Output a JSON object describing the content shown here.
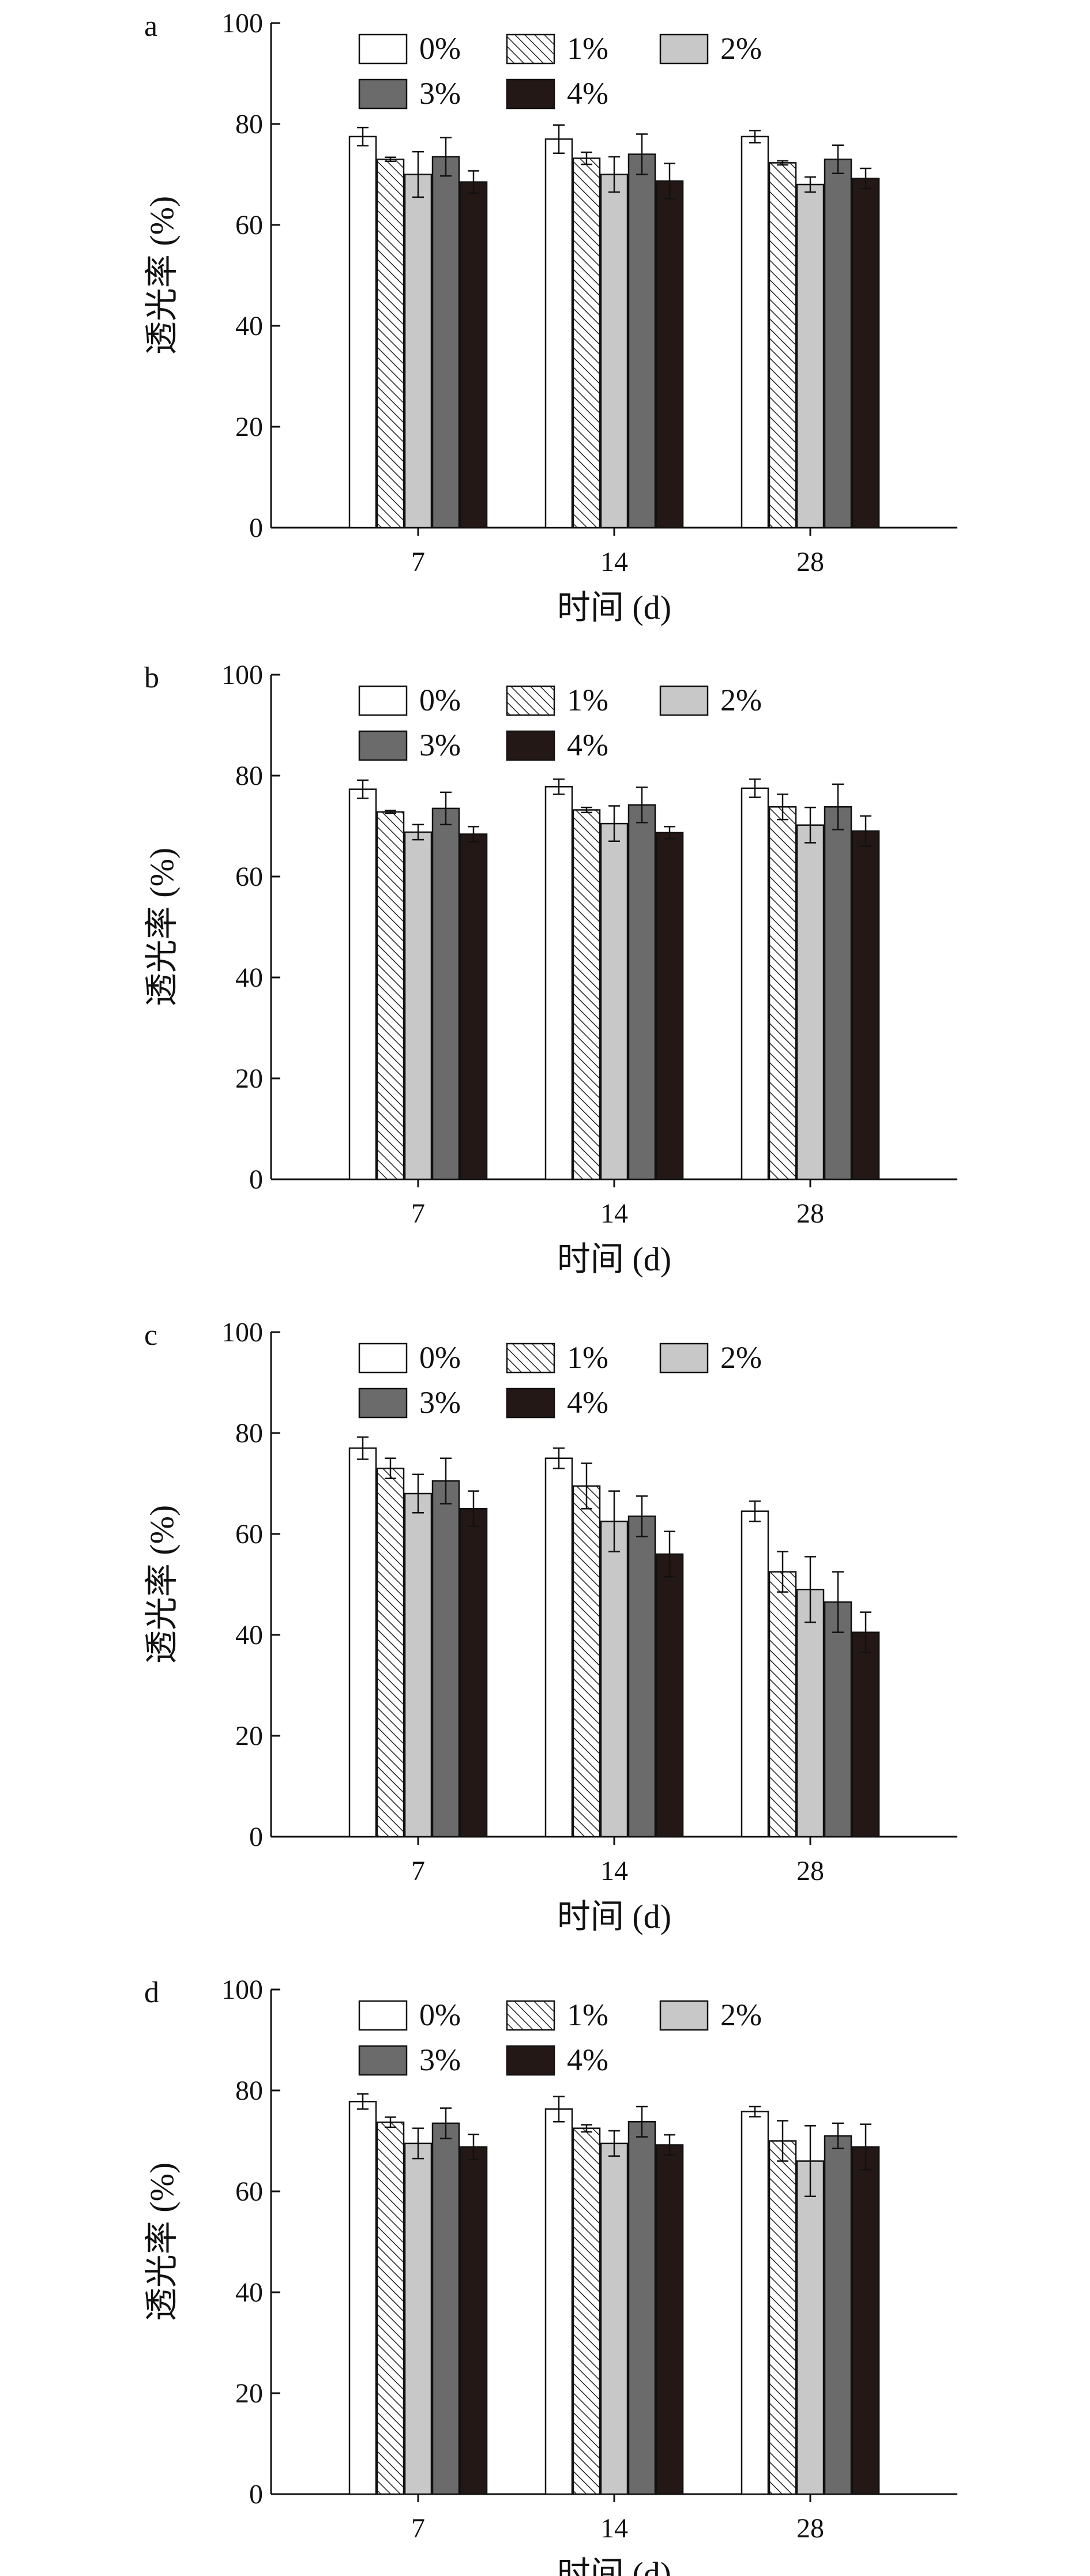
{
  "figure": {
    "colors": {
      "0%": "#ffffff",
      "1%": "hatch",
      "2%": "#c8c8c8",
      "3%": "#6b6b6b",
      "4%": "#231815"
    }
  },
  "chart_data": [
    {
      "type": "bar",
      "panel": "a",
      "categories": [
        "7",
        "14",
        "28"
      ],
      "xlabel": "时间 (d)",
      "ylabel": "透光率 (%)",
      "ylim": [
        0,
        100
      ],
      "yticks": [
        0,
        20,
        40,
        60,
        80,
        100
      ],
      "legend": [
        "0%",
        "1%",
        "2%",
        "3%",
        "4%"
      ],
      "legend_position": "top-left",
      "grid": false,
      "series": [
        {
          "name": "0%",
          "values": [
            77.5,
            77.0,
            77.5
          ],
          "errors": [
            1.8,
            2.8,
            1.2
          ]
        },
        {
          "name": "1%",
          "values": [
            73.0,
            73.2,
            72.3
          ],
          "errors": [
            0.4,
            1.2,
            0.4
          ]
        },
        {
          "name": "2%",
          "values": [
            70.0,
            70.0,
            68.0
          ],
          "errors": [
            4.5,
            3.5,
            1.5
          ]
        },
        {
          "name": "3%",
          "values": [
            73.5,
            74.0,
            73.0
          ],
          "errors": [
            3.8,
            4.0,
            2.8
          ]
        },
        {
          "name": "4%",
          "values": [
            68.5,
            68.7,
            69.2
          ],
          "errors": [
            2.2,
            3.5,
            2.0
          ]
        }
      ]
    },
    {
      "type": "bar",
      "panel": "b",
      "categories": [
        "7",
        "14",
        "28"
      ],
      "xlabel": "时间 (d)",
      "ylabel": "透光率 (%)",
      "ylim": [
        0,
        100
      ],
      "yticks": [
        0,
        20,
        40,
        60,
        80,
        100
      ],
      "legend": [
        "0%",
        "1%",
        "2%",
        "3%",
        "4%"
      ],
      "legend_position": "top-left",
      "grid": false,
      "series": [
        {
          "name": "0%",
          "values": [
            77.3,
            77.8,
            77.5
          ],
          "errors": [
            1.8,
            1.5,
            1.8
          ]
        },
        {
          "name": "1%",
          "values": [
            72.8,
            73.2,
            73.8
          ],
          "errors": [
            0.3,
            0.5,
            2.5
          ]
        },
        {
          "name": "2%",
          "values": [
            68.8,
            70.5,
            70.2
          ],
          "errors": [
            1.5,
            3.5,
            3.5
          ]
        },
        {
          "name": "3%",
          "values": [
            73.5,
            74.2,
            73.8
          ],
          "errors": [
            3.2,
            3.5,
            4.5
          ]
        },
        {
          "name": "4%",
          "values": [
            68.4,
            68.7,
            69.0
          ],
          "errors": [
            1.5,
            1.2,
            3.0
          ]
        }
      ]
    },
    {
      "type": "bar",
      "panel": "c",
      "categories": [
        "7",
        "14",
        "28"
      ],
      "xlabel": "时间 (d)",
      "ylabel": "透光率 (%)",
      "ylim": [
        0,
        100
      ],
      "yticks": [
        0,
        20,
        40,
        60,
        80,
        100
      ],
      "legend": [
        "0%",
        "1%",
        "2%",
        "3%",
        "4%"
      ],
      "legend_position": "top-left",
      "grid": false,
      "series": [
        {
          "name": "0%",
          "values": [
            77.0,
            75.0,
            64.5
          ],
          "errors": [
            2.2,
            2.0,
            2.0
          ]
        },
        {
          "name": "1%",
          "values": [
            73.0,
            69.5,
            52.5
          ],
          "errors": [
            2.0,
            4.5,
            4.0
          ]
        },
        {
          "name": "2%",
          "values": [
            68.0,
            62.5,
            49.0
          ],
          "errors": [
            3.8,
            6.0,
            6.5
          ]
        },
        {
          "name": "3%",
          "values": [
            70.5,
            63.5,
            46.5
          ],
          "errors": [
            4.5,
            4.0,
            6.0
          ]
        },
        {
          "name": "4%",
          "values": [
            65.0,
            56.0,
            40.5
          ],
          "errors": [
            3.5,
            4.5,
            4.0
          ]
        }
      ]
    },
    {
      "type": "bar",
      "panel": "d",
      "categories": [
        "7",
        "14",
        "28"
      ],
      "xlabel": "时间 (d)",
      "ylabel": "透光率 (%)",
      "ylim": [
        0,
        100
      ],
      "yticks": [
        0,
        20,
        40,
        60,
        80,
        100
      ],
      "legend": [
        "0%",
        "1%",
        "2%",
        "3%",
        "4%"
      ],
      "legend_position": "top-left",
      "grid": false,
      "series": [
        {
          "name": "0%",
          "values": [
            77.8,
            76.3,
            75.8
          ],
          "errors": [
            1.5,
            2.5,
            1.0
          ]
        },
        {
          "name": "1%",
          "values": [
            73.7,
            72.5,
            70.0
          ],
          "errors": [
            1.0,
            0.7,
            4.0
          ]
        },
        {
          "name": "2%",
          "values": [
            69.5,
            69.5,
            66.0
          ],
          "errors": [
            3.0,
            2.5,
            7.0
          ]
        },
        {
          "name": "3%",
          "values": [
            73.5,
            73.8,
            71.0
          ],
          "errors": [
            3.0,
            3.0,
            2.5
          ]
        },
        {
          "name": "4%",
          "values": [
            68.8,
            69.2,
            68.8
          ],
          "errors": [
            2.5,
            2.0,
            4.5
          ]
        }
      ]
    }
  ]
}
